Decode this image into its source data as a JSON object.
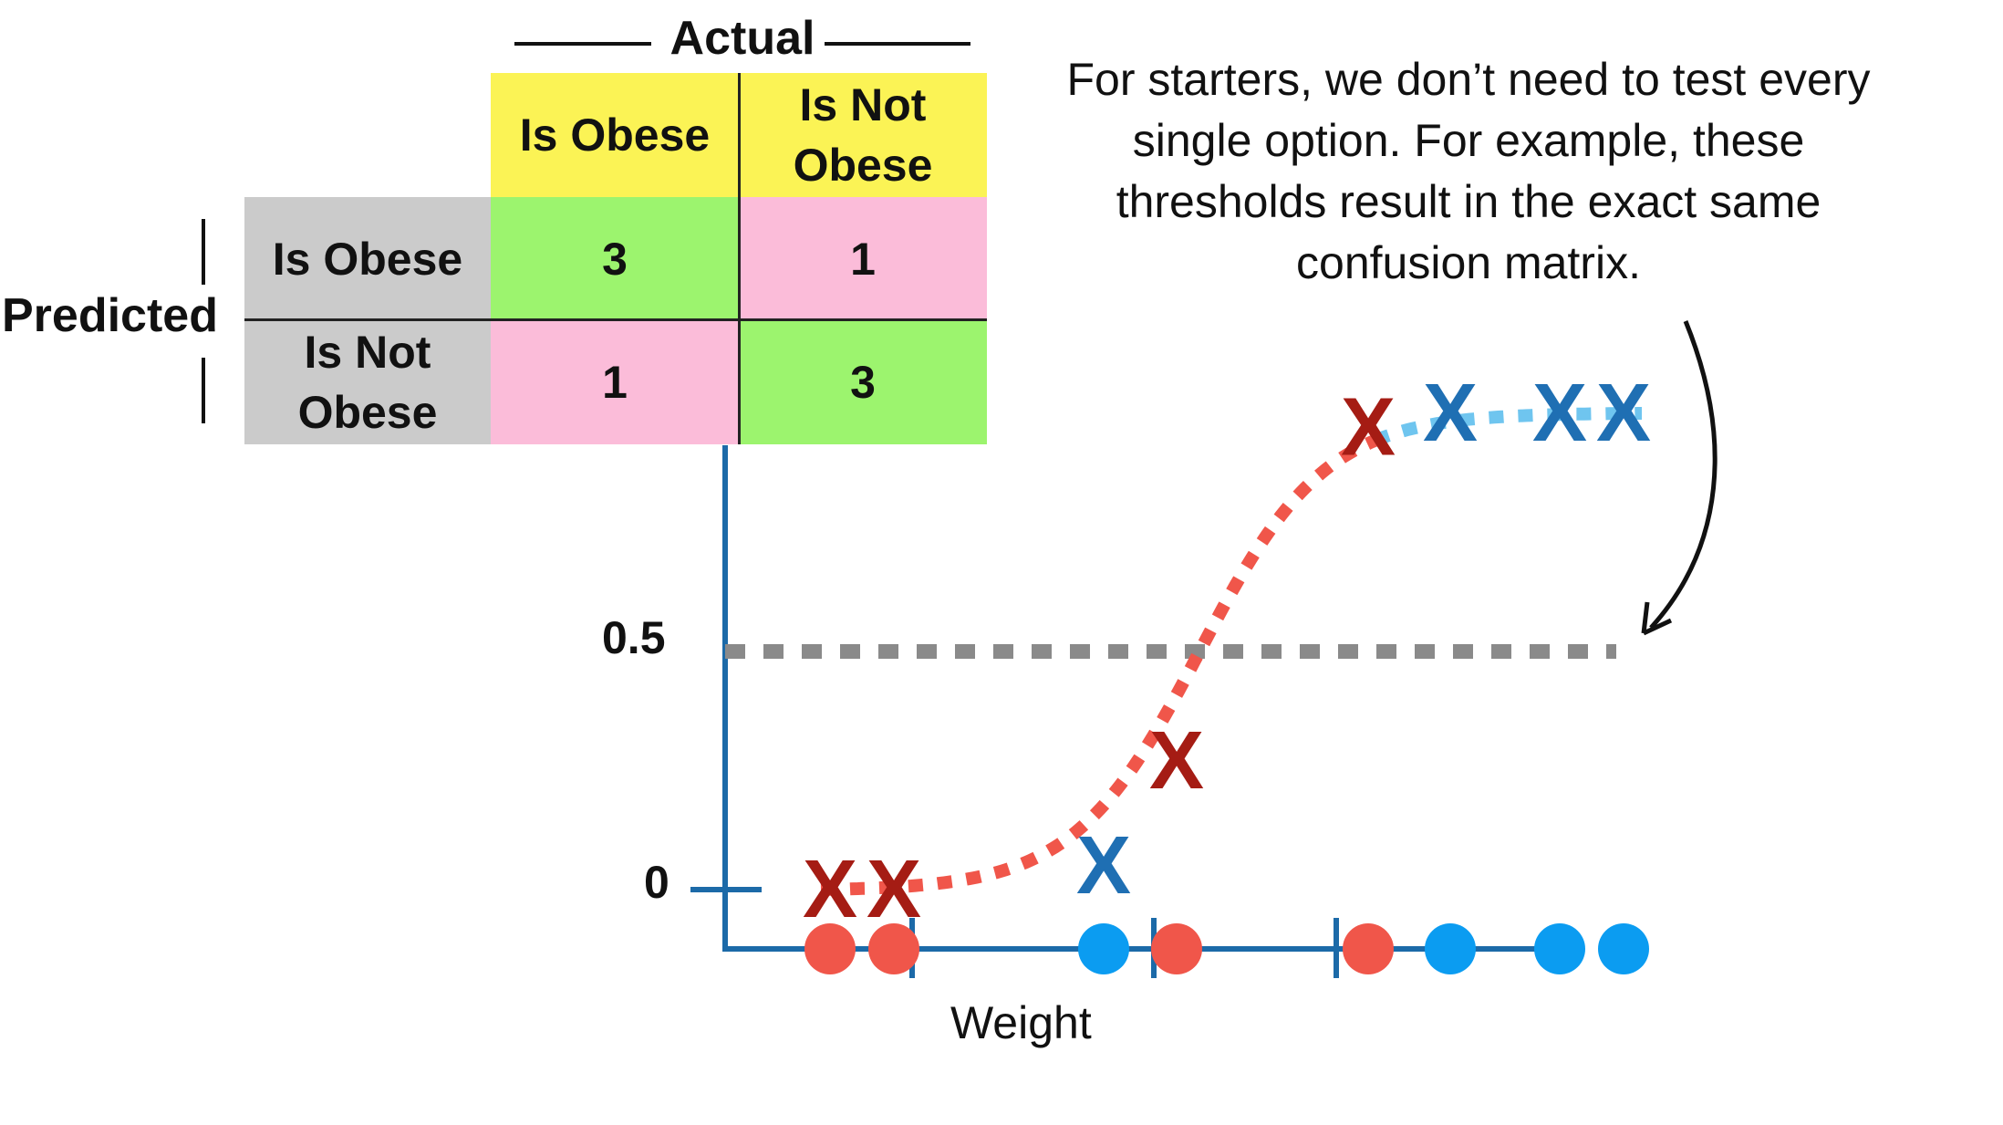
{
  "matrix": {
    "actual_label": "Actual",
    "predicted_label": "Predicted",
    "col_headers": [
      "Is Obese",
      "Is Not\nObese"
    ],
    "row_headers": [
      "Is Obese",
      "Is Not\nObese"
    ],
    "cells": [
      [
        "3",
        "1"
      ],
      [
        "1",
        "3"
      ]
    ]
  },
  "caption": "For starters, we don’t need to test every single option. For example, these thresholds result in the exact same confusion matrix.",
  "chart_data": {
    "type": "scatter",
    "xlabel": "Weight",
    "y_ticks": [
      "0",
      "0.5"
    ],
    "threshold": 0.5,
    "points": [
      {
        "x": 1.0,
        "y": 0.0,
        "class": "obese"
      },
      {
        "x": 1.7,
        "y": 0.0,
        "class": "obese"
      },
      {
        "x": 4.0,
        "y": 0.05,
        "class": "not-obese"
      },
      {
        "x": 4.8,
        "y": 0.27,
        "class": "obese"
      },
      {
        "x": 6.9,
        "y": 0.97,
        "class": "obese"
      },
      {
        "x": 7.8,
        "y": 1.0,
        "class": "not-obese"
      },
      {
        "x": 9.0,
        "y": 1.0,
        "class": "not-obese"
      },
      {
        "x": 9.7,
        "y": 1.0,
        "class": "not-obese"
      }
    ],
    "x_tick_marks": [
      1.9,
      4.55,
      6.55
    ],
    "colors": {
      "obese": "#a51c14",
      "not_obese": "#1f6fb3",
      "dot_obese": "#f0564a",
      "dot_not_obese": "#0b9cf1",
      "axis": "#1c6aa8",
      "curve": "#f0564a",
      "curve_tail": "#6fc5ef",
      "threshold": "#8a8a8a"
    }
  }
}
